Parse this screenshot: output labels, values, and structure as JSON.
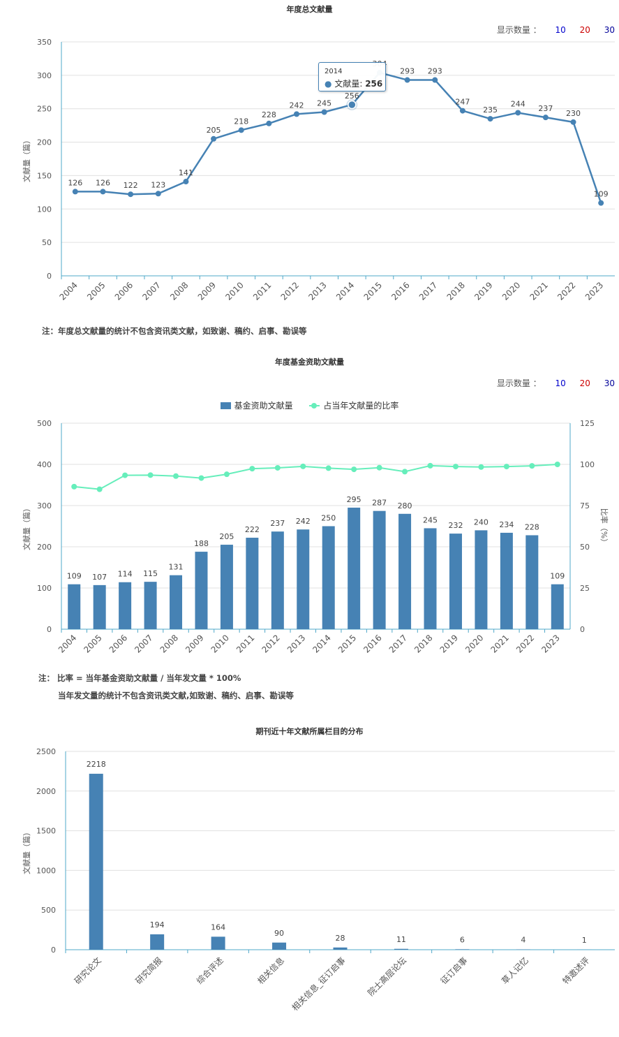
{
  "show_count": {
    "label": "显示数量 ：",
    "options": [
      {
        "label": "10",
        "color": "#0000cc"
      },
      {
        "label": "20",
        "color": "#cc0000"
      },
      {
        "label": "30",
        "color": "#000099"
      }
    ]
  },
  "chart1": {
    "title": "年度总文献量",
    "note": "注：年度总文献量的统计不包含资讯类文献，如致谢、稿约、启事、勘误等",
    "tooltip": {
      "year": "2014",
      "label": "文献量:",
      "value": "256"
    }
  },
  "chart2": {
    "title": "年度基金资助文献量",
    "note1": "注： 比率 = 当年基金资助文献量 / 当年发文量 * 100%",
    "note2": "当年发文量的统计不包含资讯类文献,如致谢、稿约、启事、勘误等"
  },
  "chart3": {
    "title": "期刊近十年文献所属栏目的分布"
  },
  "colors": {
    "bar": "#4682b4",
    "line": "#4682b4",
    "ratio": "#66eebb",
    "grid": "#e0e0e0",
    "axis": "#4fa8c9"
  },
  "chart_data": [
    {
      "type": "line",
      "title": "年度总文献量",
      "ylabel": "文献量（篇）",
      "x": [
        "2004",
        "2005",
        "2006",
        "2007",
        "2008",
        "2009",
        "2010",
        "2011",
        "2012",
        "2013",
        "2014",
        "2015",
        "2016",
        "2017",
        "2018",
        "2019",
        "2020",
        "2021",
        "2022",
        "2023"
      ],
      "values": [
        126,
        126,
        122,
        123,
        141,
        205,
        218,
        228,
        242,
        245,
        256,
        304,
        293,
        293,
        247,
        235,
        244,
        237,
        230,
        109
      ],
      "ylim": [
        0,
        350
      ],
      "yticks": [
        0,
        50,
        100,
        150,
        200,
        250,
        300,
        350
      ],
      "grid": true
    },
    {
      "type": "bar",
      "title": "年度基金资助文献量",
      "ylabel": "文献量（篇）",
      "y2label": "比率（%）",
      "categories": [
        "2004",
        "2005",
        "2006",
        "2007",
        "2008",
        "2009",
        "2010",
        "2011",
        "2012",
        "2013",
        "2014",
        "2015",
        "2016",
        "2017",
        "2018",
        "2019",
        "2020",
        "2021",
        "2022",
        "2023"
      ],
      "series": [
        {
          "name": "基金资助文献量",
          "type": "bar",
          "values": [
            109,
            107,
            114,
            115,
            131,
            188,
            205,
            222,
            237,
            242,
            250,
            295,
            287,
            280,
            245,
            232,
            240,
            234,
            228,
            109
          ]
        },
        {
          "name": "占当年文献量的比率",
          "type": "line",
          "axis": "right",
          "values": [
            86.5,
            84.9,
            93.4,
            93.5,
            92.9,
            91.7,
            94.0,
            97.4,
            97.9,
            98.8,
            97.7,
            97.0,
            98.0,
            95.6,
            99.2,
            98.7,
            98.4,
            98.7,
            99.1,
            100.0
          ]
        }
      ],
      "ylim": [
        0,
        500
      ],
      "yticks": [
        0,
        100,
        200,
        300,
        400,
        500
      ],
      "y2lim": [
        0,
        125
      ],
      "y2ticks": [
        0,
        25,
        50,
        75,
        100,
        125
      ],
      "legend": "top-center",
      "grid": true
    },
    {
      "type": "bar",
      "title": "期刊近十年文献所属栏目的分布",
      "ylabel": "文献量（篇）",
      "categories": [
        "研究论文",
        "研究简报",
        "综合评述",
        "相关信息",
        "相关信息_征订启事",
        "院士高层论坛",
        "征订启事",
        "草人记忆",
        "特邀述评"
      ],
      "values": [
        2218,
        194,
        164,
        90,
        28,
        11,
        6,
        4,
        1
      ],
      "ylim": [
        0,
        2500
      ],
      "yticks": [
        0,
        500,
        1000,
        1500,
        2000,
        2500
      ],
      "grid": true
    }
  ]
}
